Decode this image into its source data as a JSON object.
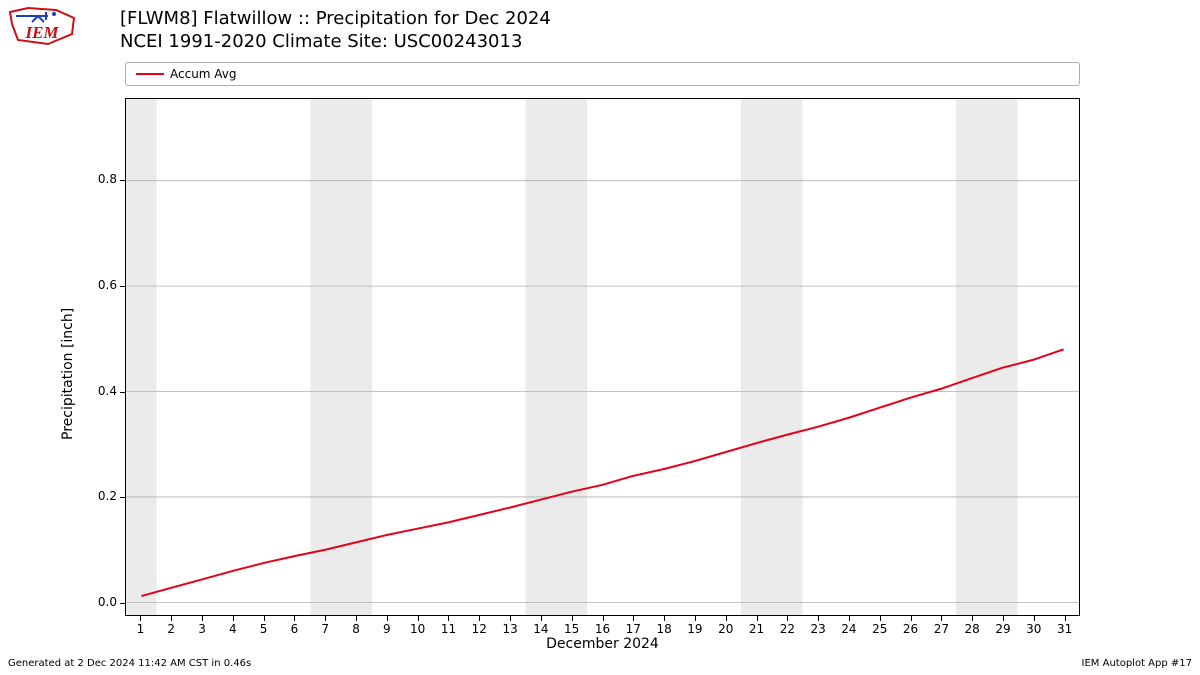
{
  "logo": {
    "text": "IEM",
    "text_color": "#c91016",
    "outline_color": "#c91016",
    "accent_color": "#1f3fb8"
  },
  "title": {
    "line1": "[FLWM8] Flatwillow :: Precipitation for Dec 2024",
    "line2": "NCEI 1991-2020 Climate Site: USC00243013",
    "fontsize": 18
  },
  "legend": {
    "items": [
      {
        "label": "Accum Avg",
        "color": "#e5001c"
      }
    ],
    "border_color": "#b0b0b0"
  },
  "chart": {
    "type": "line",
    "background_color": "#ffffff",
    "weekend_band_color": "#ebebeb",
    "grid_color": "#b0b0b0",
    "axis_color": "#000000",
    "x": {
      "label": "December 2024",
      "ticks": [
        1,
        2,
        3,
        4,
        5,
        6,
        7,
        8,
        9,
        10,
        11,
        12,
        13,
        14,
        15,
        16,
        17,
        18,
        19,
        20,
        21,
        22,
        23,
        24,
        25,
        26,
        27,
        28,
        29,
        30,
        31
      ],
      "lim": [
        0.5,
        31.5
      ],
      "weekend_days": [
        1,
        7,
        8,
        14,
        15,
        21,
        22,
        28,
        29
      ],
      "label_fontsize": 14,
      "tick_fontsize": 12
    },
    "y": {
      "label": "Precipitation [inch]",
      "ticks": [
        0.0,
        0.2,
        0.4,
        0.6,
        0.8
      ],
      "lim": [
        -0.024,
        0.955
      ],
      "label_fontsize": 14,
      "tick_fontsize": 12
    },
    "series": [
      {
        "name": "Accum Avg",
        "color": "#e5001c",
        "line_width": 2,
        "x": [
          1,
          2,
          3,
          4,
          5,
          6,
          7,
          8,
          9,
          10,
          11,
          12,
          13,
          14,
          15,
          16,
          17,
          18,
          19,
          20,
          21,
          22,
          23,
          24,
          25,
          26,
          27,
          28,
          29,
          30,
          31
        ],
        "y": [
          0.012,
          0.028,
          0.044,
          0.06,
          0.075,
          0.088,
          0.1,
          0.114,
          0.128,
          0.14,
          0.152,
          0.166,
          0.18,
          0.195,
          0.21,
          0.223,
          0.24,
          0.253,
          0.268,
          0.285,
          0.302,
          0.318,
          0.333,
          0.35,
          0.369,
          0.388,
          0.405,
          0.425,
          0.445,
          0.46,
          0.48
        ]
      }
    ]
  },
  "footer": {
    "left": "Generated at 2 Dec 2024 11:42 AM CST in 0.46s",
    "right": "IEM Autoplot App #17",
    "fontsize": 10
  }
}
